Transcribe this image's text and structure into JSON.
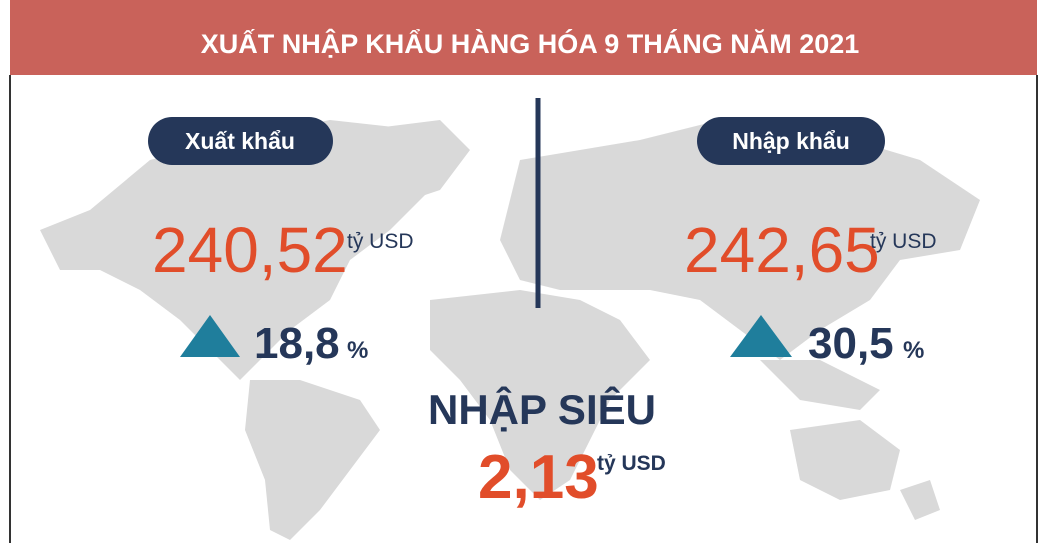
{
  "header": {
    "title": "XUẤT NHẬP KHẨU HÀNG HÓA  9 THÁNG NĂM 2021"
  },
  "export": {
    "label": "Xuất khẩu",
    "value": "240,52",
    "unit": "tỷ USD",
    "change": "18,8",
    "change_unit": "%"
  },
  "import": {
    "label": "Nhập khẩu",
    "value": "242,65",
    "unit": "tỷ USD",
    "change": "30,5",
    "change_unit": "%"
  },
  "balance": {
    "label": "NHẬP SIÊU",
    "value": "2,13",
    "unit": "tỷ USD"
  }
}
